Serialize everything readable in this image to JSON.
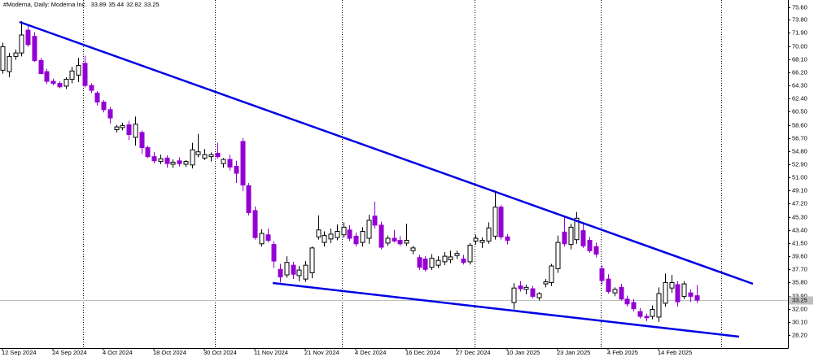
{
  "chart_data": {
    "type": "candlestick",
    "title": "#Moderna, Daily:  Moderna Inc.",
    "categories": [
      "12 Sep 2024",
      null,
      null,
      null,
      null,
      null,
      null,
      null,
      "24 Sep 2024",
      null,
      null,
      null,
      null,
      null,
      null,
      null,
      "4 Oct 2024",
      null,
      null,
      null,
      null,
      null,
      null,
      null,
      "18 Oct 2024",
      null,
      null,
      null,
      null,
      null,
      null,
      null,
      "30 Oct 2024",
      null,
      null,
      null,
      null,
      null,
      null,
      null,
      "11 Nov 2024",
      null,
      null,
      null,
      null,
      null,
      null,
      null,
      "21 Nov 2024",
      null,
      null,
      null,
      null,
      null,
      null,
      null,
      "4 Dec 2024",
      null,
      null,
      null,
      null,
      null,
      null,
      null,
      "16 Dec 2024",
      null,
      null,
      null,
      null,
      null,
      null,
      null,
      "27 Dec 2024",
      null,
      null,
      null,
      null,
      null,
      null,
      null,
      "10 Jan 2025",
      null,
      null,
      null,
      null,
      null,
      null,
      null,
      "23 Jan 2025",
      null,
      null,
      null,
      null,
      null,
      null,
      null,
      "4 Feb 2025",
      null,
      null,
      null,
      null,
      null,
      null,
      null,
      "14 Feb 2025",
      null,
      null,
      null,
      null,
      null,
      null
    ],
    "open": [
      66.5,
      66.3,
      68.5,
      69,
      72.3,
      71.4,
      67.9,
      66.3,
      64.9,
      64.6,
      64.2,
      65.2,
      65.8,
      67.5,
      64.3,
      63.2,
      61.9,
      60.8,
      57.9,
      58.2,
      58.6,
      56.8,
      57.5,
      55.3,
      54.0,
      53.3,
      53.8,
      52.9,
      53.4,
      52.9,
      52.8,
      54.3,
      53.8,
      54.0,
      54.5,
      53.0,
      53.6,
      52.6,
      56.2,
      49.8,
      46.2,
      41.4,
      42.7,
      41.3,
      37.7,
      36.9,
      38.3,
      36.8,
      36.3,
      37.2,
      42.4,
      41.6,
      42.1,
      42.3,
      42.7,
      43.4,
      42.5,
      41.6,
      42.2,
      45.4,
      44.1,
      41.5,
      42.2,
      41.9,
      41.5,
      40.4,
      39.4,
      39.2,
      38.0,
      38.3,
      38.8,
      39.1,
      39.7,
      39.2,
      38.8,
      41.8,
      41.6,
      41.8,
      42.5,
      46.7,
      42.4,
      32.9,
      35.3,
      34.8,
      34.9,
      33.6,
      35.6,
      35.8,
      37.8,
      43.1,
      41.3,
      42.0,
      43.3,
      41.9,
      41.0,
      37.8,
      36.3,
      34.3,
      35.1,
      33.4,
      32.9,
      31.6,
      30.9,
      30.9,
      30.8,
      32.8,
      35.0,
      35.5,
      33.8,
      34.3,
      33.89
    ],
    "high": [
      70.5,
      69,
      69.5,
      73.6,
      73,
      72,
      68.3,
      66.7,
      65.3,
      64.9,
      65.5,
      67,
      68.3,
      68.6,
      64.6,
      63.5,
      62.2,
      61.2,
      58.6,
      58.9,
      59.2,
      59.8,
      57.8,
      55.6,
      54.7,
      54.3,
      54.2,
      53.6,
      53.9,
      53.5,
      56,
      57.3,
      55.1,
      54.6,
      56,
      53.8,
      54.3,
      53.4,
      56.7,
      50.2,
      46.8,
      43.5,
      43.6,
      41.8,
      38.5,
      39.6,
      38.8,
      38.2,
      38.9,
      41.0,
      45.5,
      43.2,
      43.6,
      44.2,
      44.5,
      44.1,
      43.0,
      43.8,
      45.6,
      47.5,
      44.6,
      42.6,
      43.4,
      42.5,
      44.3,
      41.1,
      39.8,
      39.6,
      39.9,
      39.6,
      40.2,
      40.4,
      40.4,
      39.8,
      41.5,
      42.7,
      42.3,
      44.5,
      49.1,
      47.0,
      42.8,
      35.7,
      36.0,
      35.5,
      35.3,
      34.4,
      36.3,
      38.5,
      42.6,
      45.3,
      44.3,
      46.0,
      44.3,
      42.4,
      41.6,
      38.3,
      37.0,
      35.1,
      35.6,
      33.9,
      33.4,
      32.1,
      31.3,
      32.5,
      35.1,
      37.1,
      36.9,
      36.0,
      36.0,
      34.8,
      35.44
    ],
    "low": [
      66,
      65.5,
      68,
      68.5,
      69.9,
      67.7,
      66,
      64.5,
      64.3,
      63.9,
      63.8,
      64.6,
      64.8,
      64.0,
      63.2,
      61.4,
      60.4,
      58.8,
      57.5,
      57.8,
      56.4,
      55.6,
      54.4,
      53.8,
      53.0,
      52.9,
      52.4,
      52.4,
      52.6,
      52.5,
      52.3,
      53.9,
      53.5,
      53.3,
      53.7,
      52.4,
      52.0,
      50.2,
      49.0,
      45.5,
      42.0,
      41.0,
      41.6,
      37.9,
      35.8,
      36.5,
      36.3,
      36.0,
      35.9,
      36.4,
      42.0,
      41.0,
      41.5,
      41.9,
      42.3,
      41.8,
      41.0,
      41.0,
      41.4,
      43.6,
      40.6,
      41.1,
      41.6,
      41.1,
      41.1,
      39.9,
      37.6,
      37.4,
      37.6,
      37.9,
      38.3,
      38.6,
      39.2,
      38.4,
      38.4,
      41.3,
      40.8,
      41.4,
      42.0,
      42.0,
      41.3,
      31.9,
      34.5,
      34.1,
      33.5,
      33.2,
      35.1,
      35.3,
      37.2,
      41.0,
      40.6,
      41.4,
      40.8,
      40.1,
      39.4,
      35.5,
      34.2,
      33.8,
      33.2,
      32.3,
      31.6,
      30.6,
      30.2,
      30.5,
      30.1,
      32.3,
      34.3,
      32.3,
      33.4,
      33.0,
      32.82
    ],
    "close": [
      69.9,
      68.5,
      69.0,
      71.6,
      70.2,
      67.9,
      66.0,
      64.9,
      64.6,
      64.1,
      65.2,
      66.4,
      67.2,
      64.3,
      63.6,
      61.9,
      60.8,
      59.6,
      58.3,
      58.5,
      57.2,
      58.7,
      55.3,
      54.0,
      53.4,
      53.7,
      53.0,
      53.2,
      53.0,
      53.3,
      55.0,
      54.7,
      54.3,
      54.3,
      54.0,
      53.6,
      52.5,
      51.6,
      49.9,
      45.9,
      42.3,
      42.9,
      41.9,
      38.9,
      36.6,
      38.7,
      37.0,
      37.6,
      38.3,
      40.8,
      43.4,
      42.6,
      42.8,
      43.2,
      43.8,
      42.2,
      41.4,
      43.2,
      44.8,
      44.1,
      40.9,
      42.2,
      41.8,
      41.4,
      41.9,
      40.8,
      38.0,
      37.7,
      39.3,
      39.0,
      39.6,
      39.5,
      40.0,
      38.7,
      41.2,
      42.2,
      41.9,
      43.7,
      46.7,
      42.4,
      41.9,
      35.0,
      34.9,
      35.1,
      33.8,
      34.2,
      35.9,
      38.2,
      41.6,
      41.4,
      43.8,
      45.1,
      41.1,
      40.4,
      39.9,
      36.1,
      34.5,
      34.8,
      33.4,
      32.7,
      32.0,
      30.9,
      30.7,
      31.9,
      34.2,
      35.8,
      35.8,
      33.0,
      35.6,
      33.8,
      33.25
    ],
    "up_color": "#ffffff",
    "down_color": "#9400d3",
    "ylim": [
      26.32,
      76.66
    ],
    "yticks": [
      {
        "value": 28.2,
        "label": "28.20"
      },
      {
        "value": 30.1,
        "label": "30.10"
      },
      {
        "value": 32,
        "label": "32.00"
      },
      {
        "value": 33.9,
        "label": "33.90"
      },
      {
        "value": 35.8,
        "label": "35.80"
      },
      {
        "value": 37.7,
        "label": "37.70"
      },
      {
        "value": 39.6,
        "label": "39.60"
      },
      {
        "value": 41.5,
        "label": "41.50"
      },
      {
        "value": 43.4,
        "label": "43.40"
      },
      {
        "value": 45.3,
        "label": "45.30"
      },
      {
        "value": 47.2,
        "label": "47.20"
      },
      {
        "value": 49.1,
        "label": "49.10"
      },
      {
        "value": 51,
        "label": "51.00"
      },
      {
        "value": 52.9,
        "label": "52.90"
      },
      {
        "value": 54.8,
        "label": "54.80"
      },
      {
        "value": 56.7,
        "label": "56.70"
      },
      {
        "value": 58.6,
        "label": "58.60"
      },
      {
        "value": 60.5,
        "label": "60.50"
      },
      {
        "value": 62.4,
        "label": "62.40"
      },
      {
        "value": 64.3,
        "label": "64.30"
      },
      {
        "value": 66.2,
        "label": "66.20"
      },
      {
        "value": 68.1,
        "label": "68.10"
      },
      {
        "value": 70,
        "label": "70.00"
      },
      {
        "value": 71.9,
        "label": "71.90"
      },
      {
        "value": 73.8,
        "label": "73.80"
      },
      {
        "value": 75.6,
        "label": "75.60"
      }
    ]
  }
}
